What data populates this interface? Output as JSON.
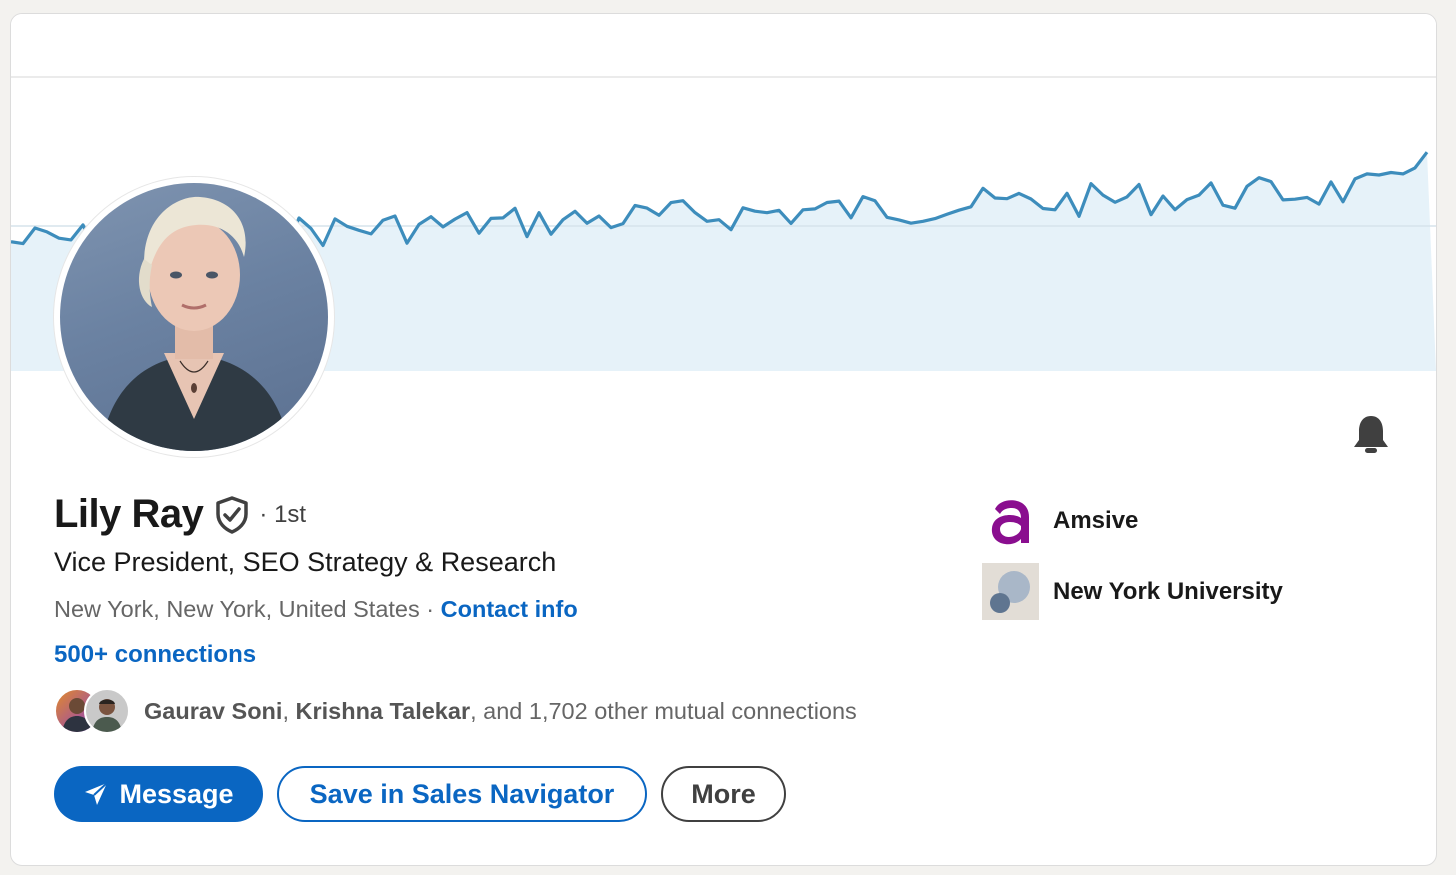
{
  "profile": {
    "name": "Lily Ray",
    "degree": "· 1st",
    "headline": "Vice President, SEO Strategy & Research",
    "location": "New York, New York, United States",
    "location_separator": " · ",
    "contact_info_label": "Contact info",
    "connections_label": "500+ connections"
  },
  "mutual": {
    "name_one": "Gaurav Soni",
    "separator": ", ",
    "name_two": "Krishna Talekar",
    "rest": ", and 1,702 other mutual connections"
  },
  "actions": {
    "message_label": "Message",
    "save_label": "Save in Sales Navigator",
    "more_label": "More"
  },
  "organizations": [
    {
      "name": "Amsive",
      "icon": "amsive-logo"
    },
    {
      "name": "New York University",
      "icon": "nyu-logo"
    }
  ],
  "colors": {
    "brand_blue": "#0a66c2",
    "banner_line": "#3d8dbc",
    "banner_fill": "#e6f2f9",
    "amsive_purple": "#8a0e8f"
  },
  "icons": {
    "notification": "bell-icon",
    "verified": "verified-shield-icon",
    "message": "send-icon"
  }
}
